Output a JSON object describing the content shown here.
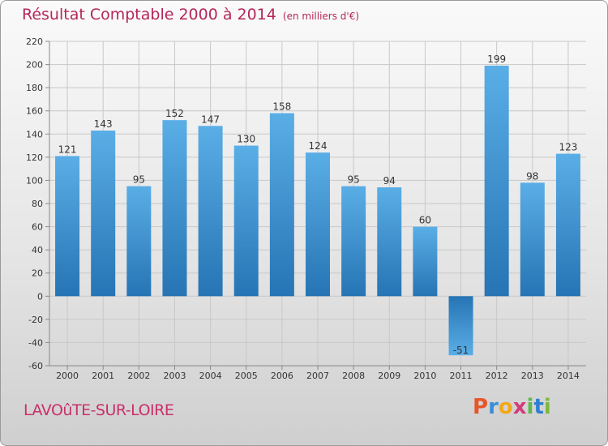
{
  "header": {
    "title": "Résultat Comptable 2000 à 2014",
    "unit": "(en milliers d'€)"
  },
  "footer": {
    "town": "LAVOûTE-SUR-LOIRE",
    "logo_letters": [
      "P",
      "r",
      "o",
      "x",
      "i",
      "t",
      "i"
    ],
    "logo_colors": [
      "#e8552a",
      "#3a8fd6",
      "#f2a818",
      "#d33a7a",
      "#5cb84b",
      "#2f7fd2",
      "#7bb83c"
    ]
  },
  "colors": {
    "bar_light": "#5aaee6",
    "bar_dark": "#2674b4",
    "grid": "#c8c8c8",
    "axis": "#888888"
  },
  "chart_data": {
    "type": "bar",
    "title": "Résultat Comptable 2000 à 2014",
    "ylabel": "(en milliers d'€)",
    "xlabel": "",
    "categories": [
      "2000",
      "2001",
      "2002",
      "2003",
      "2004",
      "2005",
      "2006",
      "2007",
      "2008",
      "2009",
      "2010",
      "2011",
      "2012",
      "2013",
      "2014"
    ],
    "values": [
      121,
      143,
      95,
      152,
      147,
      130,
      158,
      124,
      95,
      94,
      60,
      -51,
      199,
      98,
      123
    ],
    "ylim": [
      -60,
      220
    ],
    "yticks": [
      -60,
      -40,
      -20,
      0,
      20,
      40,
      60,
      80,
      100,
      120,
      140,
      160,
      180,
      200,
      220
    ],
    "grid": true,
    "legend": "none"
  }
}
